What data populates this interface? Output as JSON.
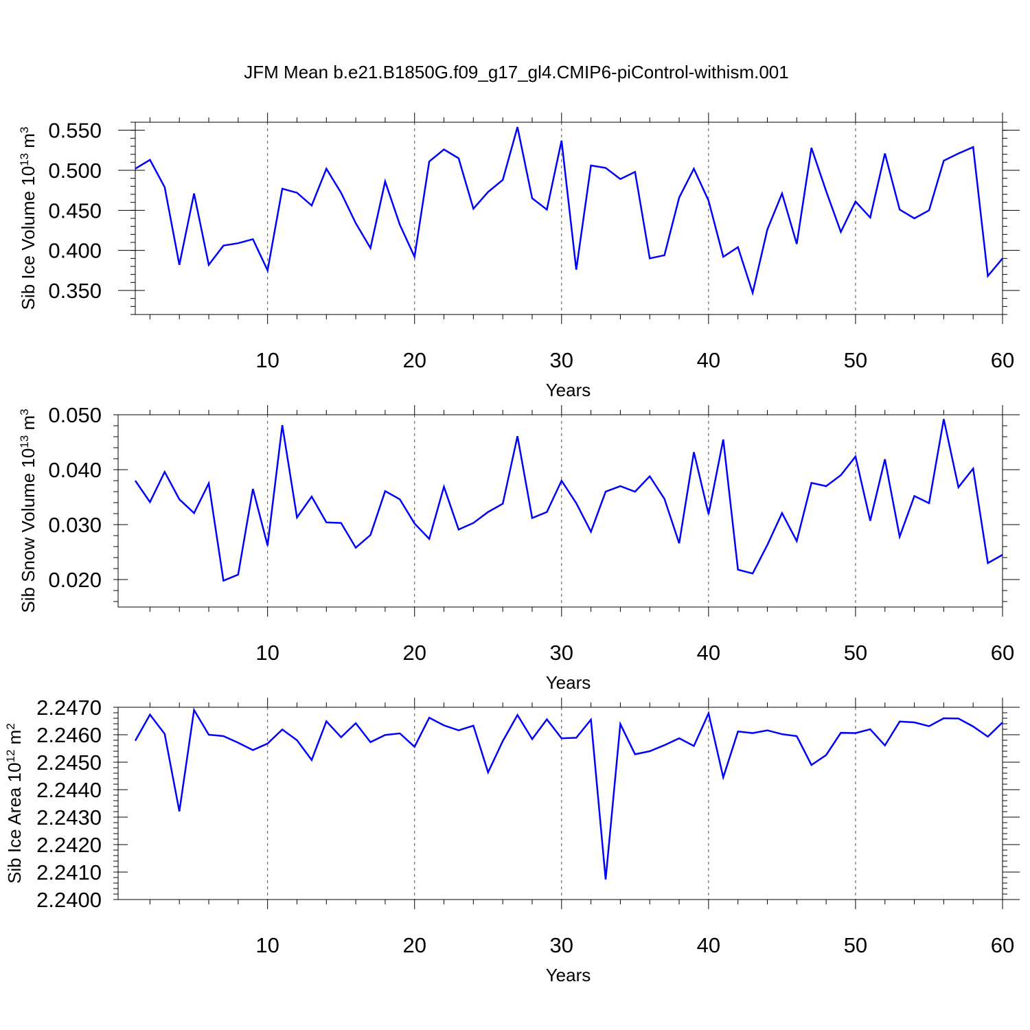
{
  "title": "JFM Mean b.e21.B1850G.f09_g17_gl4.CMIP6-piControl-withism.001",
  "colors": {
    "line": "#0000ff",
    "axis": "#000000"
  },
  "chart_data": [
    {
      "type": "line",
      "ylabel_text": "Sib Ice Volume 10",
      "ylabel_exp": "13",
      "ylabel_unit": " m",
      "ylabel_unit_exp": "3",
      "xlabel": "Years",
      "xlim": [
        1,
        60
      ],
      "ylim": [
        0.32,
        0.56
      ],
      "yticks": [
        0.35,
        0.4,
        0.45,
        0.5,
        0.55
      ],
      "ytick_labels": [
        "0.350",
        "0.400",
        "0.450",
        "0.500",
        "0.550"
      ],
      "xticks": [
        10,
        20,
        30,
        40,
        50,
        60
      ],
      "xtick_labels": [
        "10",
        "20",
        "30",
        "40",
        "50",
        "60"
      ],
      "grid_x": [
        10,
        20,
        30,
        40,
        50
      ],
      "x": [
        1,
        2,
        3,
        4,
        5,
        6,
        7,
        8,
        9,
        10,
        11,
        12,
        13,
        14,
        15,
        16,
        17,
        18,
        19,
        20,
        21,
        22,
        23,
        24,
        25,
        26,
        27,
        28,
        29,
        30,
        31,
        32,
        33,
        34,
        35,
        36,
        37,
        38,
        39,
        40,
        41,
        42,
        43,
        44,
        45,
        46,
        47,
        48,
        49,
        50,
        51,
        52,
        53,
        54,
        55,
        56,
        57,
        58,
        59,
        60
      ],
      "values": [
        0.502,
        0.513,
        0.479,
        0.382,
        0.471,
        0.382,
        0.406,
        0.409,
        0.414,
        0.375,
        0.477,
        0.472,
        0.456,
        0.502,
        0.472,
        0.434,
        0.403,
        0.486,
        0.432,
        0.392,
        0.511,
        0.526,
        0.515,
        0.452,
        0.473,
        0.488,
        0.554,
        0.465,
        0.451,
        0.537,
        0.376,
        0.506,
        0.503,
        0.489,
        0.498,
        0.39,
        0.394,
        0.466,
        0.502,
        0.462,
        0.392,
        0.404,
        0.347,
        0.426,
        0.471,
        0.408,
        0.528,
        0.474,
        0.423,
        0.461,
        0.441,
        0.521,
        0.451,
        0.44,
        0.45,
        0.512,
        0.521,
        0.529,
        0.368,
        0.39
      ]
    },
    {
      "type": "line",
      "ylabel_text": "Sib Snow Volume 10",
      "ylabel_exp": "13",
      "ylabel_unit": " m",
      "ylabel_unit_exp": "3",
      "xlabel": "Years",
      "xlim": [
        1,
        60
      ],
      "ylim": [
        0.015,
        0.05
      ],
      "yticks": [
        0.02,
        0.03,
        0.04,
        0.05
      ],
      "ytick_labels": [
        "0.020",
        "0.030",
        "0.040",
        "0.050"
      ],
      "xticks": [
        10,
        20,
        30,
        40,
        50,
        60
      ],
      "xtick_labels": [
        "10",
        "20",
        "30",
        "40",
        "50",
        "60"
      ],
      "grid_x": [
        10,
        20,
        30,
        40,
        50
      ],
      "x": [
        1,
        2,
        3,
        4,
        5,
        6,
        7,
        8,
        9,
        10,
        11,
        12,
        13,
        14,
        15,
        16,
        17,
        18,
        19,
        20,
        21,
        22,
        23,
        24,
        25,
        26,
        27,
        28,
        29,
        30,
        31,
        32,
        33,
        34,
        35,
        36,
        37,
        38,
        39,
        40,
        41,
        42,
        43,
        44,
        45,
        46,
        47,
        48,
        49,
        50,
        51,
        52,
        53,
        54,
        55,
        56,
        57,
        58,
        59,
        60
      ],
      "values": [
        0.038,
        0.0341,
        0.0396,
        0.0346,
        0.0321,
        0.0375,
        0.0198,
        0.0209,
        0.0365,
        0.0262,
        0.0481,
        0.0313,
        0.0351,
        0.0304,
        0.0303,
        0.0258,
        0.0281,
        0.0361,
        0.0346,
        0.0302,
        0.0274,
        0.0369,
        0.0291,
        0.0303,
        0.0323,
        0.0338,
        0.0461,
        0.0312,
        0.0323,
        0.038,
        0.0339,
        0.0287,
        0.036,
        0.037,
        0.036,
        0.0388,
        0.0347,
        0.0266,
        0.0432,
        0.0319,
        0.0455,
        0.0218,
        0.0211,
        0.0263,
        0.0321,
        0.027,
        0.0376,
        0.037,
        0.039,
        0.0424,
        0.0307,
        0.0419,
        0.0278,
        0.0352,
        0.0339,
        0.0492,
        0.0368,
        0.0402,
        0.023,
        0.0245
      ]
    },
    {
      "type": "line",
      "ylabel_text": "Sib Ice Area 10",
      "ylabel_exp": "12",
      "ylabel_unit": " m",
      "ylabel_unit_exp": "2",
      "xlabel": "Years",
      "xlim": [
        1,
        60
      ],
      "ylim": [
        2.24,
        2.247
      ],
      "yticks": [
        2.24,
        2.241,
        2.242,
        2.243,
        2.244,
        2.245,
        2.246,
        2.247
      ],
      "ytick_labels": [
        "2.2400",
        "2.2410",
        "2.2420",
        "2.2430",
        "2.2440",
        "2.2450",
        "2.2460",
        "2.2470"
      ],
      "xticks": [
        10,
        20,
        30,
        40,
        50,
        60
      ],
      "xtick_labels": [
        "10",
        "20",
        "30",
        "40",
        "50",
        "60"
      ],
      "grid_x": [
        10,
        20,
        30,
        40,
        50
      ],
      "x": [
        1,
        2,
        3,
        4,
        5,
        6,
        7,
        8,
        9,
        10,
        11,
        12,
        13,
        14,
        15,
        16,
        17,
        18,
        19,
        20,
        21,
        22,
        23,
        24,
        25,
        26,
        27,
        28,
        29,
        30,
        31,
        32,
        33,
        34,
        35,
        36,
        37,
        38,
        39,
        40,
        41,
        42,
        43,
        44,
        45,
        46,
        47,
        48,
        49,
        50,
        51,
        52,
        53,
        54,
        55,
        56,
        57,
        58,
        59,
        60
      ],
      "values": [
        2.24578,
        2.24673,
        2.24603,
        2.24321,
        2.2469,
        2.246,
        2.24595,
        2.24571,
        2.24544,
        2.24568,
        2.24619,
        2.2458,
        2.24508,
        2.24649,
        2.24591,
        2.24642,
        2.24573,
        2.24599,
        2.24605,
        2.24556,
        2.24662,
        2.24634,
        2.24616,
        2.24633,
        2.24463,
        2.24577,
        2.24672,
        2.24584,
        2.24656,
        2.24587,
        2.24589,
        2.24655,
        2.24073,
        2.24639,
        2.24529,
        2.2454,
        2.24562,
        2.24587,
        2.24559,
        2.24678,
        2.24445,
        2.24612,
        2.24606,
        2.24616,
        2.24602,
        2.24595,
        2.2449,
        2.24526,
        2.24607,
        2.24606,
        2.2462,
        2.24561,
        2.24648,
        2.24645,
        2.24631,
        2.2466,
        2.24659,
        2.2463,
        2.24593,
        2.24645
      ]
    }
  ]
}
